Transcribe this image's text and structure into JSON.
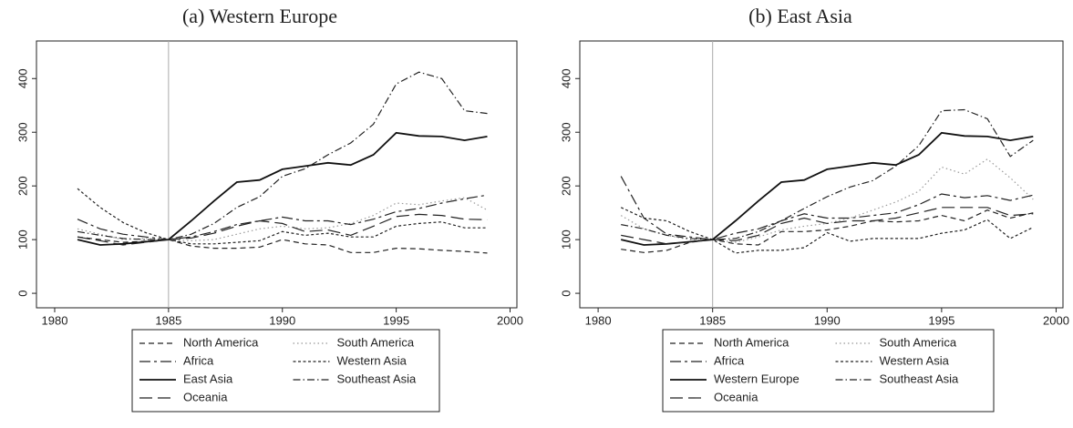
{
  "chart_data": [
    {
      "type": "line",
      "title": "(a) Western Europe",
      "x": [
        1981,
        1982,
        1983,
        1984,
        1985,
        1986,
        1987,
        1988,
        1989,
        1990,
        1991,
        1992,
        1993,
        1994,
        1995,
        1996,
        1997,
        1998,
        1999
      ],
      "xlim": [
        1979.2,
        2000.3
      ],
      "xticks": [
        1980,
        1985,
        1990,
        1995,
        2000
      ],
      "ylim": [
        -27,
        470
      ],
      "yticks": [
        0,
        100,
        200,
        300,
        400
      ],
      "xline": 1985,
      "grid": false,
      "series": [
        {
          "name": "North America",
          "color": "#222222",
          "style": "dash",
          "values": [
            105,
            100,
            95,
            97,
            100,
            88,
            84,
            84,
            86,
            100,
            92,
            90,
            76,
            76,
            84,
            83,
            80,
            78,
            75
          ]
        },
        {
          "name": "South America",
          "color": "#999999",
          "style": "dot",
          "values": [
            120,
            110,
            100,
            102,
            100,
            98,
            100,
            110,
            120,
            125,
            120,
            122,
            130,
            145,
            168,
            165,
            172,
            178,
            155
          ]
        },
        {
          "name": "Africa",
          "color": "#222222",
          "style": "longdashdot",
          "values": [
            138,
            120,
            110,
            105,
            100,
            105,
            115,
            128,
            135,
            142,
            135,
            135,
            128,
            138,
            152,
            158,
            168,
            176,
            183
          ]
        },
        {
          "name": "Western Asia",
          "color": "#222222",
          "style": "shortdash",
          "values": [
            195,
            160,
            132,
            113,
            100,
            92,
            92,
            95,
            98,
            115,
            108,
            112,
            105,
            105,
            125,
            130,
            133,
            122,
            122
          ]
        },
        {
          "name": "East Asia",
          "color": "#111111",
          "style": "solid",
          "values": [
            100,
            90,
            92,
            96,
            100,
            135,
            172,
            207,
            211,
            231,
            237,
            243,
            239,
            258,
            299,
            293,
            292,
            285,
            292
          ]
        },
        {
          "name": "Southeast Asia",
          "color": "#222222",
          "style": "dashdot",
          "values": [
            115,
            108,
            102,
            100,
            100,
            110,
            130,
            160,
            180,
            218,
            232,
            258,
            280,
            315,
            390,
            412,
            400,
            340,
            335
          ]
        },
        {
          "name": "Oceania",
          "color": "#222222",
          "style": "longdash",
          "values": [
            105,
            98,
            90,
            95,
            100,
            103,
            112,
            125,
            135,
            130,
            115,
            118,
            108,
            125,
            143,
            147,
            145,
            138,
            137
          ]
        }
      ]
    },
    {
      "type": "line",
      "title": "(b) East Asia",
      "x": [
        1981,
        1982,
        1983,
        1984,
        1985,
        1986,
        1987,
        1988,
        1989,
        1990,
        1991,
        1992,
        1993,
        1994,
        1995,
        1996,
        1997,
        1998,
        1999
      ],
      "xlim": [
        1979.2,
        2000.3
      ],
      "xticks": [
        1980,
        1985,
        1990,
        1995,
        2000
      ],
      "ylim": [
        -27,
        470
      ],
      "yticks": [
        0,
        100,
        200,
        300,
        400
      ],
      "xline": 1985,
      "grid": false,
      "series": [
        {
          "name": "North America",
          "color": "#222222",
          "style": "dash",
          "values": [
            82,
            76,
            80,
            95,
            100,
            92,
            90,
            115,
            115,
            118,
            125,
            135,
            133,
            135,
            145,
            135,
            155,
            140,
            150
          ]
        },
        {
          "name": "South America",
          "color": "#999999",
          "style": "dot",
          "values": [
            145,
            120,
            108,
            100,
            100,
            95,
            105,
            118,
            125,
            130,
            140,
            155,
            170,
            190,
            235,
            222,
            250,
            215,
            175
          ]
        },
        {
          "name": "Africa",
          "color": "#222222",
          "style": "longdashdot",
          "values": [
            218,
            140,
            110,
            105,
            100,
            112,
            120,
            135,
            148,
            140,
            140,
            145,
            150,
            165,
            185,
            178,
            182,
            173,
            183
          ]
        },
        {
          "name": "Western Asia",
          "color": "#222222",
          "style": "shortdash",
          "values": [
            160,
            140,
            135,
            115,
            100,
            75,
            80,
            80,
            85,
            113,
            97,
            102,
            102,
            102,
            112,
            118,
            137,
            102,
            123
          ]
        },
        {
          "name": "Western Europe",
          "color": "#111111",
          "style": "solid",
          "values": [
            100,
            90,
            92,
            96,
            100,
            135,
            172,
            207,
            211,
            231,
            237,
            243,
            239,
            258,
            299,
            293,
            292,
            285,
            292
          ]
        },
        {
          "name": "Southeast Asia",
          "color": "#222222",
          "style": "dashdot",
          "values": [
            128,
            120,
            108,
            102,
            100,
            102,
            115,
            135,
            158,
            180,
            198,
            210,
            237,
            275,
            340,
            342,
            325,
            255,
            285
          ]
        },
        {
          "name": "Oceania",
          "color": "#222222",
          "style": "longdash",
          "values": [
            108,
            100,
            92,
            96,
            100,
            98,
            108,
            130,
            140,
            130,
            135,
            135,
            140,
            150,
            160,
            160,
            160,
            145,
            148
          ]
        }
      ]
    }
  ]
}
